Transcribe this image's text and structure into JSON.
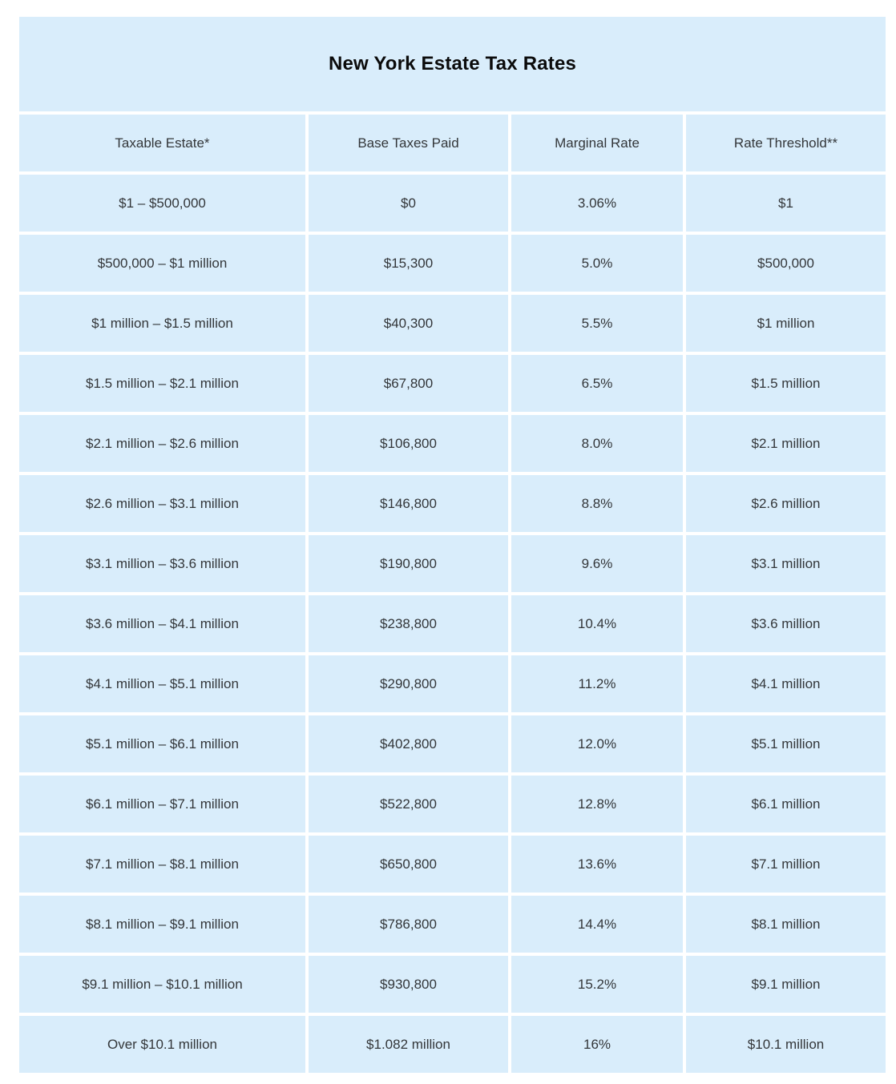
{
  "colors": {
    "page_bg": "#ffffff",
    "cell_bg": "#d9edfb",
    "text_color": "#333639",
    "title_color": "#0b0b0b"
  },
  "chart_data": {
    "type": "table",
    "title": "New York Estate Tax Rates",
    "columns": [
      "Taxable Estate*",
      "Base Taxes Paid",
      "Marginal Rate",
      "Rate Threshold**"
    ],
    "rows": [
      [
        "$1 – $500,000",
        "$0",
        "3.06%",
        "$1"
      ],
      [
        "$500,000 – $1 million",
        "$15,300",
        "5.0%",
        "$500,000"
      ],
      [
        "$1 million – $1.5 million",
        "$40,300",
        "5.5%",
        "$1 million"
      ],
      [
        "$1.5 million – $2.1 million",
        "$67,800",
        "6.5%",
        "$1.5 million"
      ],
      [
        "$2.1 million – $2.6 million",
        "$106,800",
        "8.0%",
        "$2.1 million"
      ],
      [
        "$2.6 million – $3.1 million",
        "$146,800",
        "8.8%",
        "$2.6 million"
      ],
      [
        "$3.1 million – $3.6 million",
        "$190,800",
        "9.6%",
        "$3.1 million"
      ],
      [
        "$3.6 million – $4.1 million",
        "$238,800",
        "10.4%",
        "$3.6 million"
      ],
      [
        "$4.1 million – $5.1 million",
        "$290,800",
        "11.2%",
        "$4.1 million"
      ],
      [
        "$5.1 million – $6.1 million",
        "$402,800",
        "12.0%",
        "$5.1 million"
      ],
      [
        "$6.1 million – $7.1 million",
        "$522,800",
        "12.8%",
        "$6.1 million"
      ],
      [
        "$7.1 million – $8.1 million",
        "$650,800",
        "13.6%",
        "$7.1 million"
      ],
      [
        "$8.1 million – $9.1 million",
        "$786,800",
        "14.4%",
        "$8.1 million"
      ],
      [
        "$9.1 million – $10.1 million",
        "$930,800",
        "15.2%",
        "$9.1 million"
      ],
      [
        "Over $10.1 million",
        "$1.082 million",
        "16%",
        "$10.1 million"
      ]
    ],
    "layout": {
      "text_align": "center",
      "grid": "white gutters between cells",
      "header_position": "top row below title"
    }
  }
}
